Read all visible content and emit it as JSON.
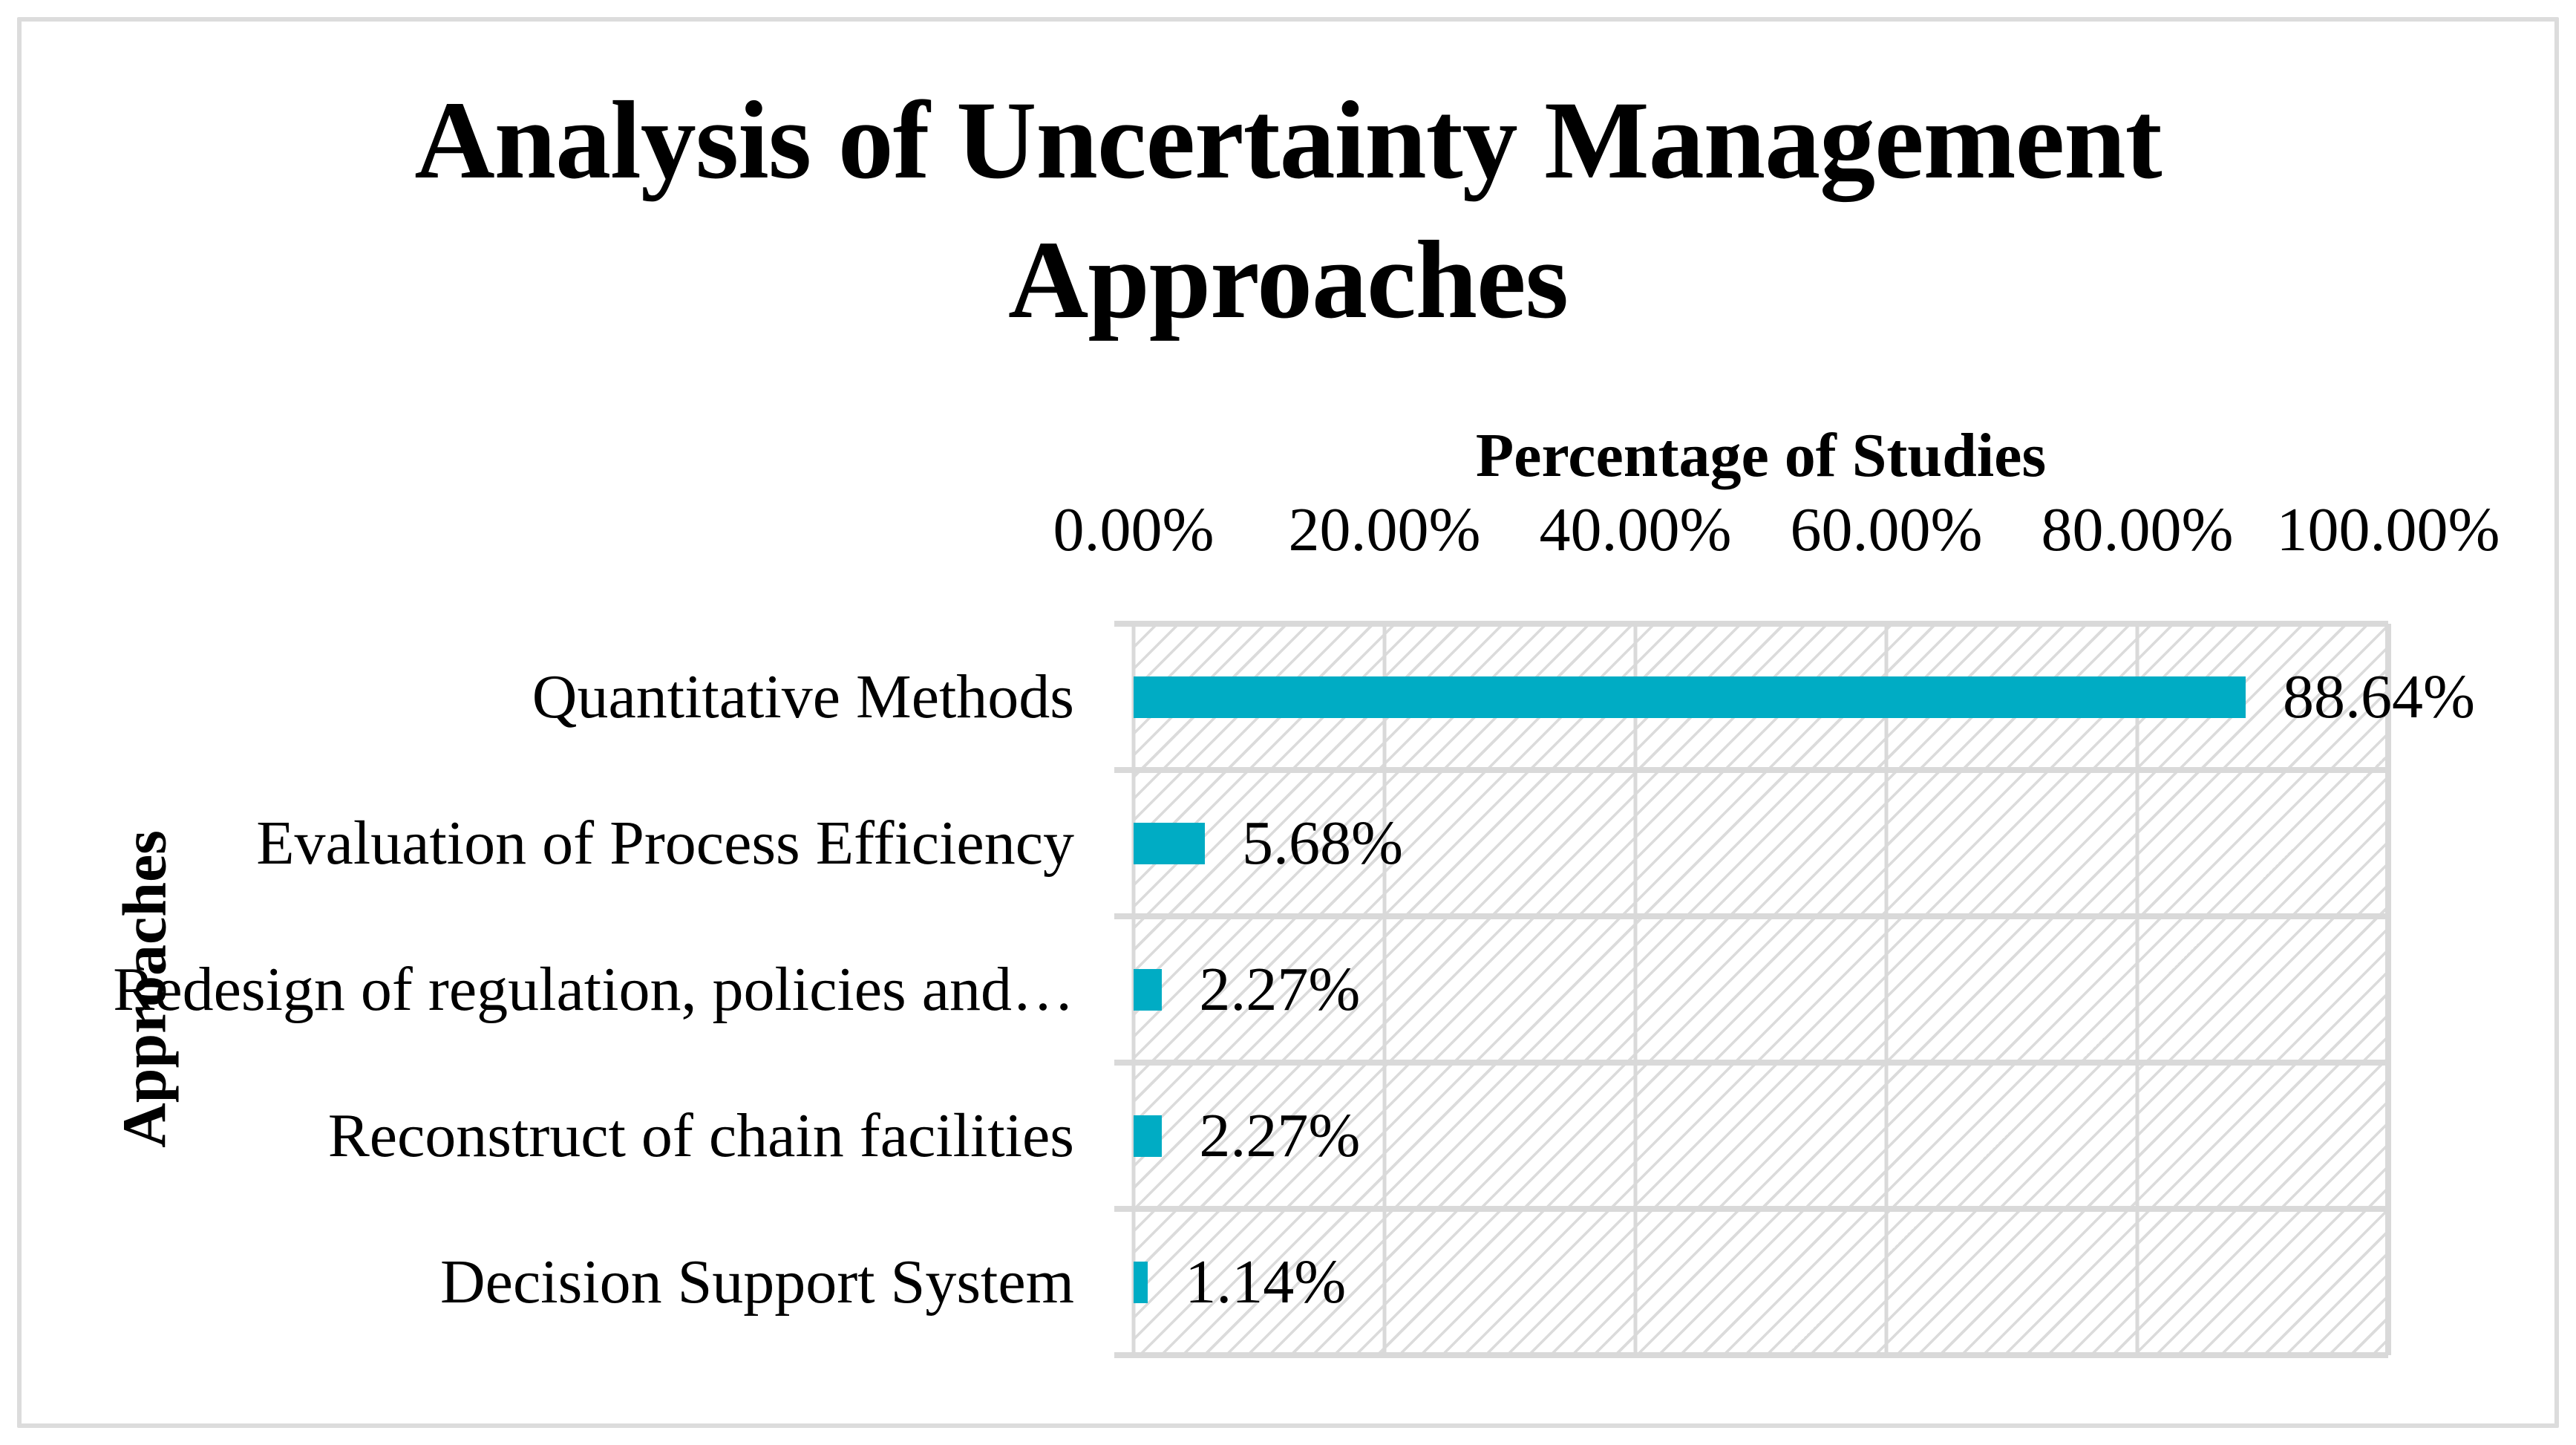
{
  "chart": {
    "title_lines": [
      "Analysis of Uncertainty Management",
      "Approaches"
    ]
  },
  "chart_data": {
    "type": "bar",
    "orientation": "horizontal",
    "title": "Analysis of Uncertainty Management Approaches",
    "xlabel": "Percentage of Studies",
    "ylabel": "Approaches",
    "xlim": [
      0,
      100
    ],
    "grid": "vertical-major",
    "legend": "none",
    "plot_fill_pattern": "light-upward-diagonal-hatch",
    "x_ticks": [
      {
        "value": 0,
        "label": "0.00%"
      },
      {
        "value": 20,
        "label": "20.00%"
      },
      {
        "value": 40,
        "label": "40.00%"
      },
      {
        "value": 60,
        "label": "60.00%"
      },
      {
        "value": 80,
        "label": "80.00%"
      },
      {
        "value": 100,
        "label": "100.00%"
      }
    ],
    "categories": [
      "Quantitative Methods",
      "Evaluation of Process Efficiency",
      "Redesign of regulation, policies and…",
      "Reconstruct of chain facilities",
      "Decision Support System"
    ],
    "values": [
      88.64,
      5.68,
      2.27,
      2.27,
      1.14
    ],
    "value_labels": [
      "88.64%",
      "5.68%",
      "2.27%",
      "2.27%",
      "1.14%"
    ],
    "colors": {
      "bar": "#00acc4",
      "gridline": "#d9d9d9",
      "hatch": "#dbdbdb",
      "text": "#000000",
      "chart_border": "#dcdcdc"
    }
  }
}
